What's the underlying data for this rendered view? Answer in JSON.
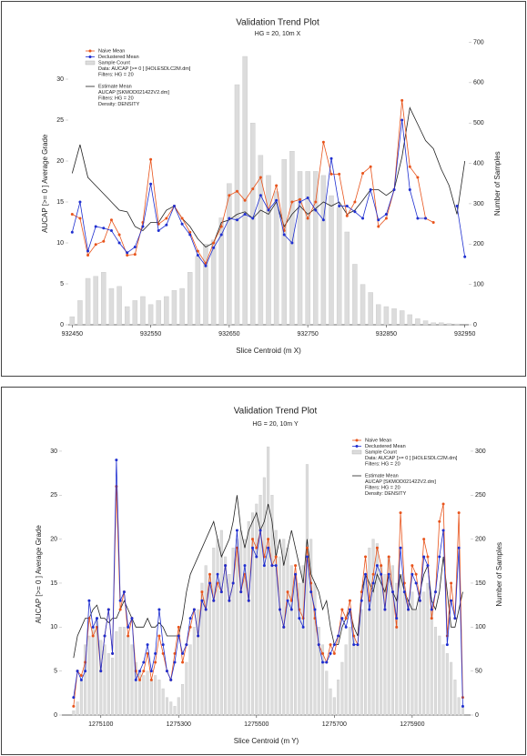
{
  "chart_data": [
    {
      "type": "line",
      "title": "Validation Trend Plot",
      "subtitle": "HG = 20, 10m X",
      "x_label": "Slice Centroid (m X)",
      "y_label": "AUCAP [>= 0 ] Average Grade",
      "y2_label": "Number of Samples",
      "xlim": [
        932445,
        932955
      ],
      "ylim": [
        0,
        34.5
      ],
      "y2lim": [
        0,
        700
      ],
      "xticks": [
        932450,
        932550,
        932650,
        932750,
        932850,
        932950
      ],
      "yticks": [
        0,
        5,
        10,
        15,
        20,
        25,
        30
      ],
      "y2ticks": [
        0,
        100,
        200,
        300,
        400,
        500,
        600,
        700
      ],
      "data_note": [
        "Data: AUCAP [>= 0 ] [HOLESDLC2M.dm]",
        "Filters: HG = 20"
      ],
      "estimate_note": [
        "AUCAP [SKMOD021422V2.dm]",
        "Filters: HG = 20",
        "Density: DENSITY"
      ],
      "x": [
        932450,
        932460,
        932470,
        932480,
        932490,
        932500,
        932510,
        932520,
        932530,
        932540,
        932550,
        932560,
        932570,
        932580,
        932590,
        932600,
        932610,
        932620,
        932630,
        932640,
        932650,
        932660,
        932670,
        932680,
        932690,
        932700,
        932710,
        932720,
        932730,
        932740,
        932750,
        932760,
        932770,
        932780,
        932790,
        932800,
        932810,
        932820,
        932830,
        932840,
        932850,
        932860,
        932870,
        932880,
        932890,
        932900,
        932910,
        932920,
        932930,
        932940,
        932950
      ],
      "series": [
        {
          "name": "Sample Count",
          "type": "bar",
          "axis": "y2",
          "color": "#dcdcdc",
          "values": [
            20,
            60,
            115,
            120,
            130,
            90,
            95,
            45,
            60,
            70,
            50,
            60,
            70,
            85,
            90,
            130,
            170,
            200,
            210,
            265,
            350,
            595,
            665,
            500,
            420,
            370,
            330,
            410,
            430,
            380,
            380,
            380,
            370,
            320,
            290,
            230,
            150,
            100,
            80,
            50,
            45,
            40,
            35,
            25,
            15,
            10,
            5,
            5,
            3,
            2,
            0
          ]
        },
        {
          "name": "Estimate Mean",
          "type": "line",
          "color": "#222222",
          "values": [
            18.5,
            22,
            18,
            17,
            16,
            15,
            14,
            13.8,
            12,
            11.5,
            12.5,
            12.5,
            14,
            14.5,
            13,
            12,
            10.5,
            9.5,
            10,
            12.5,
            12.8,
            13.5,
            13.8,
            13,
            14,
            13.5,
            15,
            12,
            13.5,
            14.5,
            13.5,
            14.2,
            15,
            14.5,
            15,
            13.5,
            14,
            15.2,
            16.5,
            16.5,
            15.8,
            16.5,
            20.5,
            26.5,
            24.5,
            22.5,
            21.5,
            19,
            17,
            13.5,
            20
          ]
        },
        {
          "name": "Naive Mean",
          "type": "marker-line",
          "color": "#e8541c",
          "values": [
            13.5,
            13,
            8.5,
            9.8,
            10.2,
            12.8,
            11,
            8.5,
            8.6,
            12.5,
            20.2,
            12.3,
            13,
            14.5,
            13,
            11.3,
            9,
            7.5,
            10,
            12,
            15.8,
            16.3,
            15.2,
            16.6,
            18,
            14,
            17,
            11.5,
            15,
            15.3,
            13,
            15,
            22.3,
            18.4,
            18.4,
            13.3,
            15,
            18.5,
            19.3,
            12,
            13,
            16.5,
            27.4,
            19.3,
            18,
            13,
            12.5,
            null,
            null,
            null,
            null
          ]
        },
        {
          "name": "Declustered Mean",
          "type": "marker-line",
          "color": "#1f2fd0",
          "values": [
            11.3,
            15,
            9,
            12,
            11.8,
            11.5,
            10,
            8.8,
            9.5,
            12,
            17.2,
            11.5,
            12.2,
            14.5,
            12.3,
            11,
            8.5,
            7.2,
            9.4,
            11,
            13,
            12.8,
            13.5,
            13,
            15.8,
            14,
            15.2,
            11,
            10,
            15,
            15.5,
            14,
            12.8,
            20.3,
            14.5,
            14.5,
            13.8,
            13,
            16.5,
            12.8,
            13.5,
            16.5,
            25,
            16.5,
            13,
            13,
            null,
            null,
            null,
            14.5,
            8.3
          ]
        }
      ]
    },
    {
      "type": "line",
      "title": "Validation Trend Plot",
      "subtitle": "HG = 20, 10m Y",
      "x_label": "Slice Centroid (m Y)",
      "y_label": "AUCAP [>= 0 ] Average Grade",
      "y2_label": "Number of Samples",
      "xlim": [
        1275000,
        1276050
      ],
      "ylim": [
        0,
        32
      ],
      "y2lim": [
        0,
        320
      ],
      "xticks": [
        1275100,
        1275300,
        1275500,
        1275700,
        1275900
      ],
      "yticks": [
        0,
        5,
        10,
        15,
        20,
        25,
        30
      ],
      "y2ticks": [
        0,
        50,
        100,
        150,
        200,
        250,
        300
      ],
      "data_note": [
        "Data: AUCAP [>= 0 ] [HOLESDLC2M.dm]",
        "Filters: HG = 20"
      ],
      "estimate_note": [
        "AUCAP [SKMOD021422V2.dm]",
        "Filters: HG = 20",
        "Density: DENSITY"
      ],
      "x": [
        1275030,
        1275040,
        1275050,
        1275060,
        1275070,
        1275080,
        1275090,
        1275100,
        1275110,
        1275120,
        1275130,
        1275140,
        1275150,
        1275160,
        1275170,
        1275180,
        1275190,
        1275200,
        1275210,
        1275220,
        1275230,
        1275240,
        1275250,
        1275260,
        1275270,
        1275280,
        1275290,
        1275300,
        1275310,
        1275320,
        1275330,
        1275340,
        1275350,
        1275360,
        1275370,
        1275380,
        1275390,
        1275400,
        1275410,
        1275420,
        1275430,
        1275440,
        1275450,
        1275460,
        1275470,
        1275480,
        1275490,
        1275500,
        1275510,
        1275520,
        1275530,
        1275540,
        1275550,
        1275560,
        1275570,
        1275580,
        1275590,
        1275600,
        1275610,
        1275620,
        1275630,
        1275640,
        1275650,
        1275660,
        1275670,
        1275680,
        1275690,
        1275700,
        1275710,
        1275720,
        1275730,
        1275740,
        1275750,
        1275760,
        1275770,
        1275780,
        1275790,
        1275800,
        1275810,
        1275820,
        1275830,
        1275840,
        1275850,
        1275860,
        1275870,
        1275880,
        1275890,
        1275900,
        1275910,
        1275920,
        1275930,
        1275940,
        1275950,
        1275960,
        1275970,
        1275980,
        1275990,
        1276000,
        1276010,
        1276020,
        1276030
      ],
      "series": [
        {
          "name": "Sample Count",
          "type": "bar",
          "axis": "y2",
          "color": "#dcdcdc",
          "values": [
            5,
            15,
            40,
            80,
            90,
            100,
            110,
            85,
            80,
            70,
            65,
            95,
            100,
            100,
            90,
            80,
            60,
            50,
            45,
            50,
            40,
            45,
            40,
            30,
            20,
            15,
            10,
            20,
            35,
            60,
            80,
            100,
            120,
            150,
            170,
            160,
            190,
            200,
            210,
            180,
            160,
            190,
            200,
            210,
            200,
            220,
            230,
            240,
            250,
            270,
            305,
            250,
            210,
            180,
            200,
            190,
            170,
            160,
            150,
            170,
            285,
            200,
            150,
            100,
            80,
            50,
            30,
            20,
            40,
            60,
            80,
            100,
            90,
            80,
            120,
            160,
            190,
            200,
            195,
            170,
            160,
            180,
            170,
            150,
            160,
            140,
            130,
            140,
            120,
            130,
            140,
            150,
            120,
            100,
            90,
            80,
            70,
            60,
            40,
            20,
            10
          ]
        },
        {
          "name": "Estimate Mean",
          "type": "line",
          "color": "#222222",
          "values": [
            6.5,
            9,
            10,
            11,
            11,
            12,
            12.5,
            11,
            11,
            10.5,
            11,
            11,
            12,
            13,
            12,
            11,
            10,
            10,
            10,
            11,
            10,
            10,
            10.5,
            10,
            9,
            9,
            9,
            9,
            11,
            14,
            16,
            17,
            18,
            19,
            20,
            21,
            22,
            20,
            18,
            19,
            20,
            22,
            25,
            21,
            19,
            21,
            22,
            23,
            21,
            22,
            24,
            22,
            18,
            20,
            17,
            19,
            21,
            19,
            17,
            15,
            20,
            16,
            15,
            14,
            12,
            13,
            10,
            8,
            8,
            10,
            11,
            12,
            10,
            9,
            14,
            16,
            15,
            14,
            16,
            15,
            14,
            16,
            14,
            13,
            16,
            14,
            13,
            12,
            12,
            14,
            16,
            17,
            13,
            12,
            14,
            18,
            14,
            10,
            10,
            12,
            14
          ]
        },
        {
          "name": "Naive Mean",
          "type": "marker-line",
          "color": "#e8541c",
          "values": [
            1,
            5,
            4.5,
            6,
            11,
            9,
            10,
            5,
            9,
            12,
            7,
            26,
            12,
            14,
            9,
            11,
            5,
            4,
            5,
            7,
            4,
            6,
            9,
            7,
            5,
            4,
            7,
            10,
            6,
            8,
            10,
            12,
            9,
            14,
            12,
            16,
            13,
            15,
            14,
            17,
            13,
            15,
            19,
            14,
            16,
            13,
            20,
            19,
            21,
            18,
            20,
            17,
            18,
            12,
            10,
            14,
            13,
            17,
            12,
            11,
            19,
            15,
            11,
            8,
            7,
            6,
            8,
            7,
            9,
            12,
            11,
            13,
            9,
            8,
            14,
            18,
            13,
            16,
            19,
            17,
            12,
            18,
            14,
            10,
            23,
            15,
            12,
            17,
            16,
            13,
            20,
            18,
            11,
            14,
            22,
            24,
            9,
            15,
            11,
            23,
            2
          ]
        },
        {
          "name": "Declustered Mean",
          "type": "marker-line",
          "color": "#1f2fd0",
          "values": [
            2,
            5,
            4,
            5,
            13,
            10,
            11,
            5,
            9,
            12,
            7,
            29,
            13,
            14,
            10,
            11,
            4,
            5,
            6,
            8,
            5,
            7,
            12,
            8,
            5,
            4,
            6,
            9,
            7,
            8,
            11,
            12,
            9,
            13,
            12,
            15,
            13,
            16,
            14,
            17,
            13,
            15,
            21,
            14,
            17,
            13,
            19,
            18,
            21,
            17,
            19,
            17,
            17,
            12,
            10,
            13,
            12,
            16,
            11,
            10,
            18,
            14,
            12,
            8,
            6,
            6,
            7,
            8,
            9,
            11,
            10,
            12,
            8,
            8,
            13,
            16,
            12,
            15,
            17,
            16,
            12,
            16,
            14,
            11,
            19,
            14,
            12,
            16,
            15,
            13,
            18,
            17,
            12,
            14,
            18,
            21,
            8,
            13,
            11,
            19,
            1
          ]
        }
      ]
    }
  ]
}
